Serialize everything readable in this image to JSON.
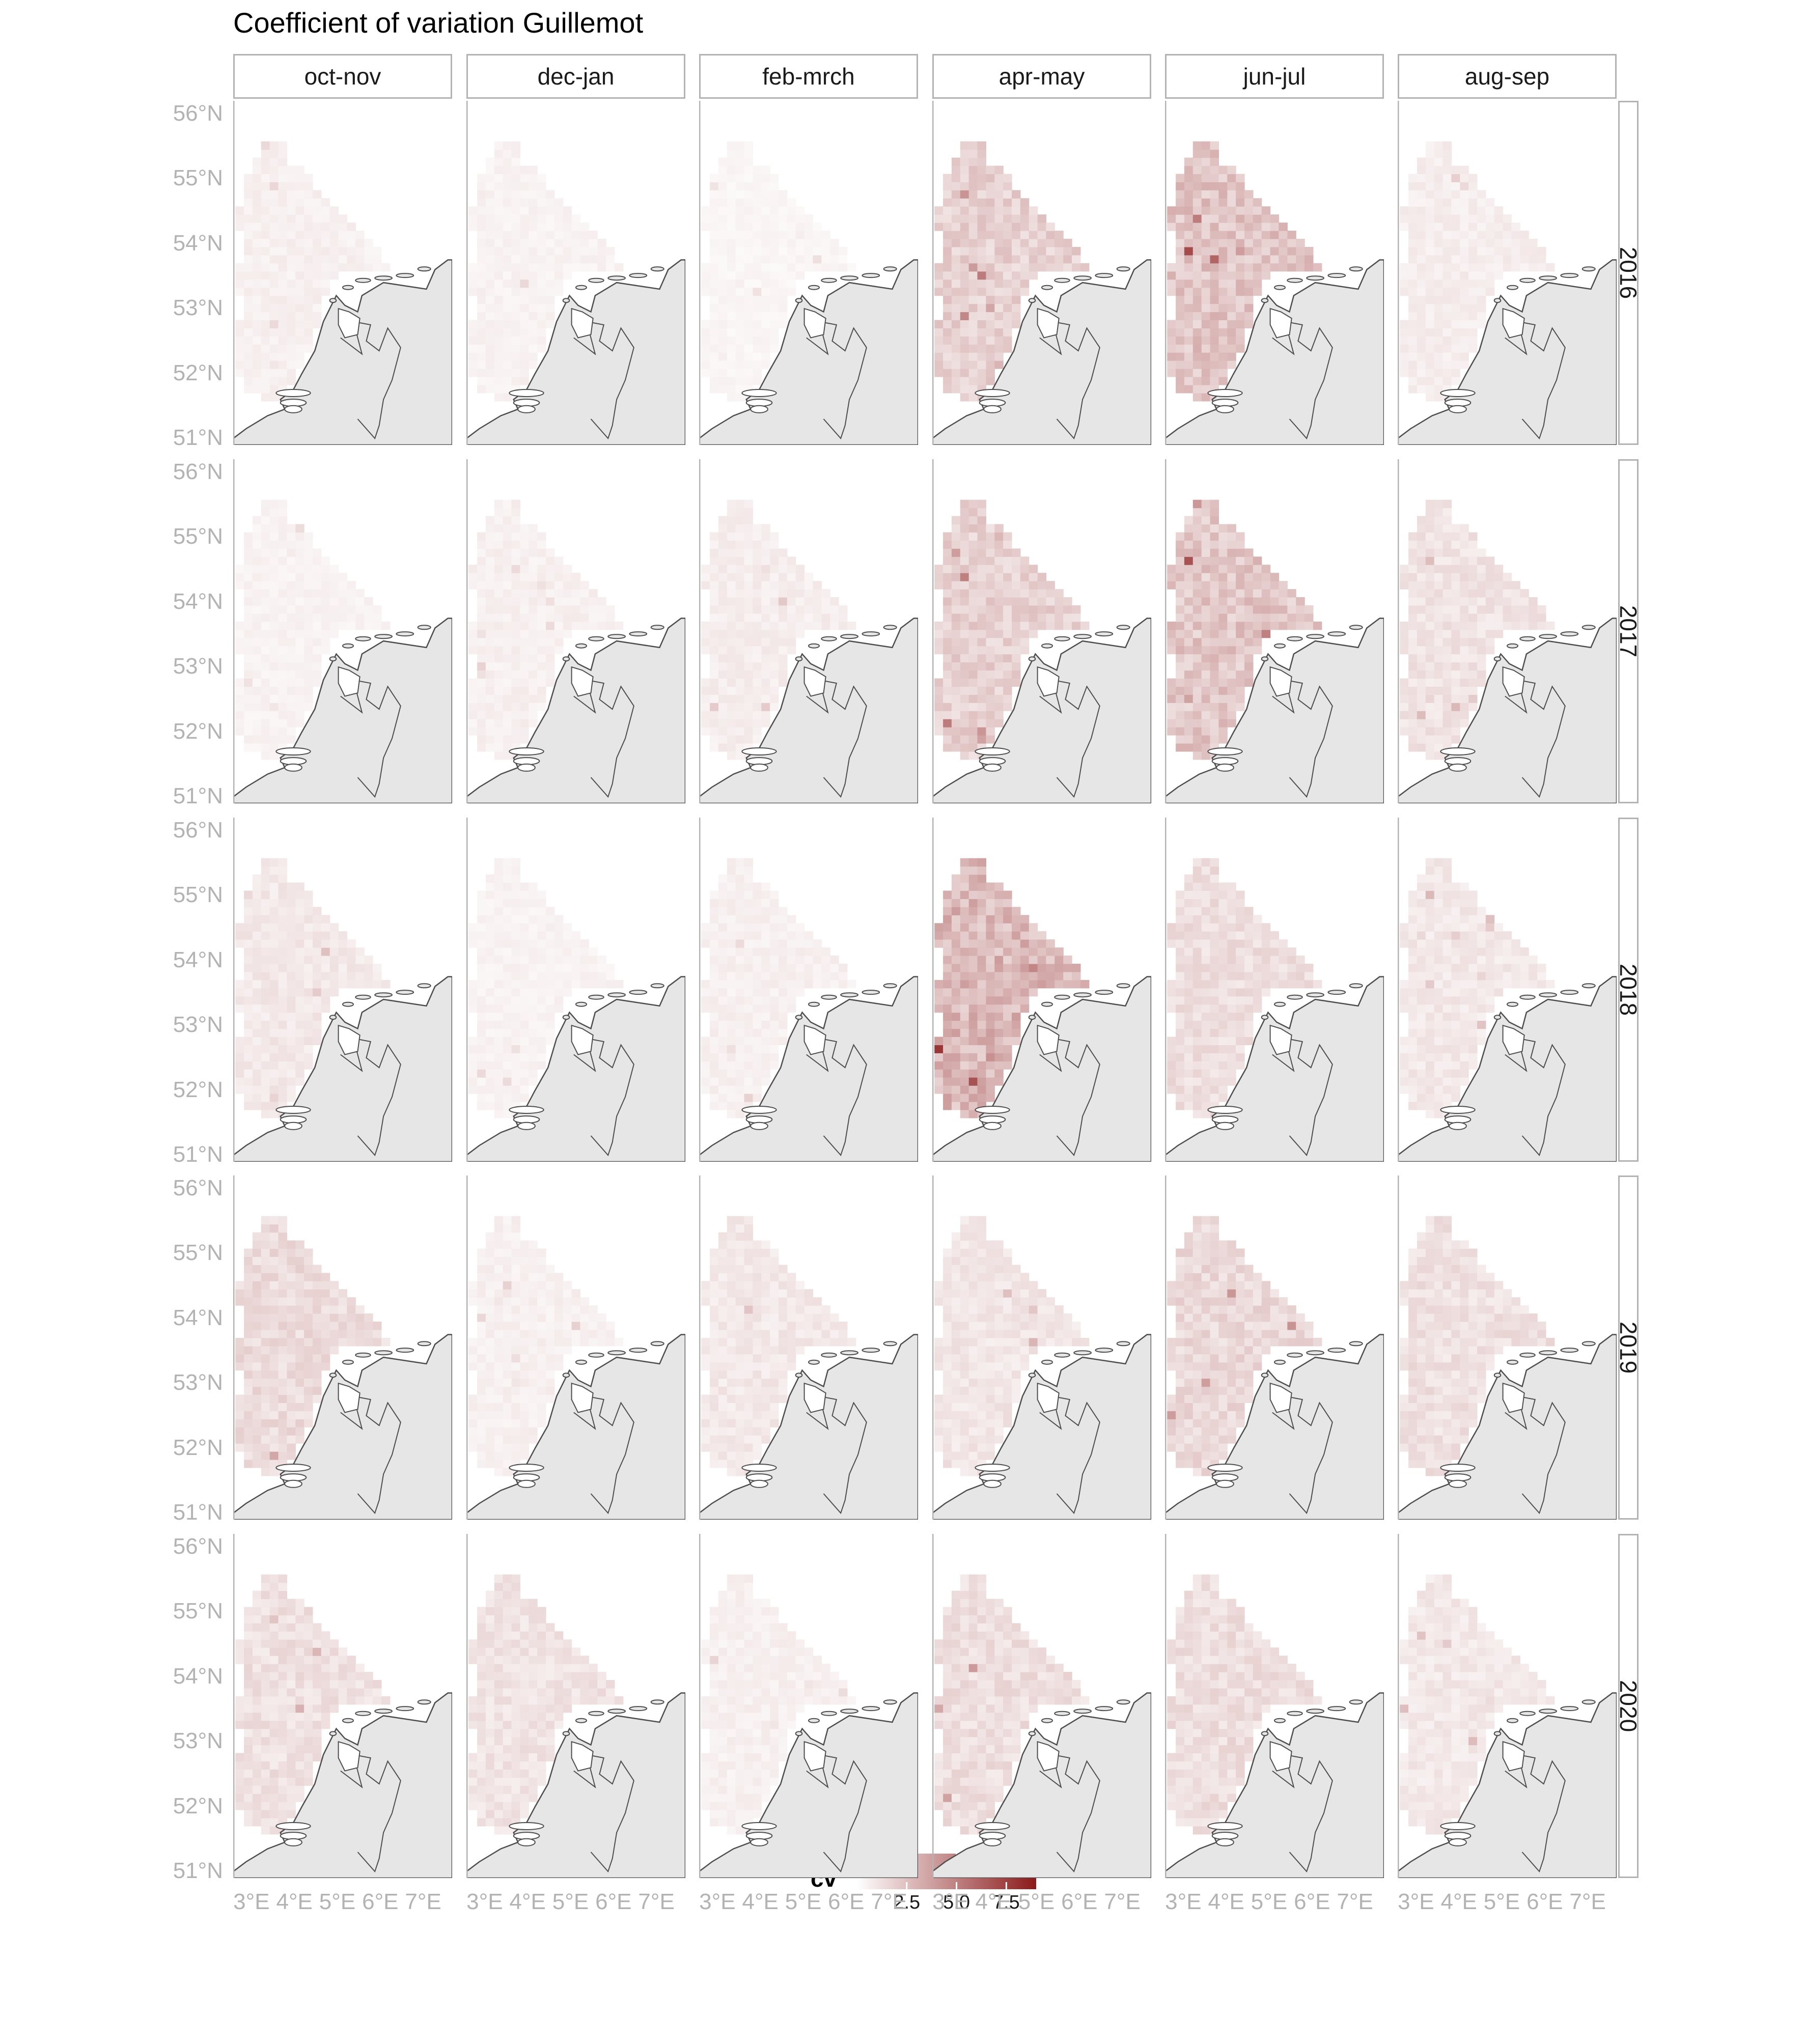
{
  "title": "Coefficient of variation Guillemot",
  "columns": [
    "oct-nov",
    "dec-jan",
    "feb-mrch",
    "apr-may",
    "jun-jul",
    "aug-sep"
  ],
  "rows": [
    "2016",
    "2017",
    "2018",
    "2019",
    "2020"
  ],
  "y_axis": {
    "ticks": [
      "56°N",
      "55°N",
      "54°N",
      "53°N",
      "52°N",
      "51°N"
    ]
  },
  "x_axis": {
    "ticks": [
      "3°E",
      "4°E",
      "5°E",
      "6°E",
      "7°E"
    ]
  },
  "legend": {
    "title": "cv",
    "ticks": [
      "2.5",
      "5.0",
      "7.5"
    ],
    "range": [
      0,
      9
    ],
    "low_color": "#ffffff",
    "high_color": "#8b1a1a"
  },
  "colors": {
    "land": "#e6e6e6",
    "coast": "#4d4d4d",
    "strip_border": "#b3b3b3",
    "axis_text": "#b3b3b3"
  },
  "chart_data": {
    "type": "heatmap",
    "description_layout": "facet grid of maps, rows = year, columns = two-month period",
    "lon_range": [
      2.5,
      7.6
    ],
    "lat_range": [
      50.9,
      56.2
    ],
    "mean_cv": {
      "2016": {
        "oct-nov": 0.6,
        "dec-jan": 0.5,
        "feb-mrch": 0.4,
        "apr-may": 1.8,
        "jun-jul": 2.3,
        "aug-sep": 0.7
      },
      "2017": {
        "oct-nov": 0.5,
        "dec-jan": 0.6,
        "feb-mrch": 0.7,
        "apr-may": 1.8,
        "jun-jul": 2.2,
        "aug-sep": 1.1
      },
      "2018": {
        "oct-nov": 0.9,
        "dec-jan": 0.5,
        "feb-mrch": 0.6,
        "apr-may": 2.8,
        "jun-jul": 1.3,
        "aug-sep": 0.9
      },
      "2019": {
        "oct-nov": 1.4,
        "dec-jan": 0.6,
        "feb-mrch": 0.9,
        "apr-may": 1.0,
        "jun-jul": 1.5,
        "aug-sep": 1.2
      },
      "2020": {
        "oct-nov": 1.2,
        "dec-jan": 1.1,
        "feb-mrch": 0.6,
        "apr-may": 1.3,
        "jun-jul": 1.3,
        "aug-sep": 0.9
      }
    }
  }
}
